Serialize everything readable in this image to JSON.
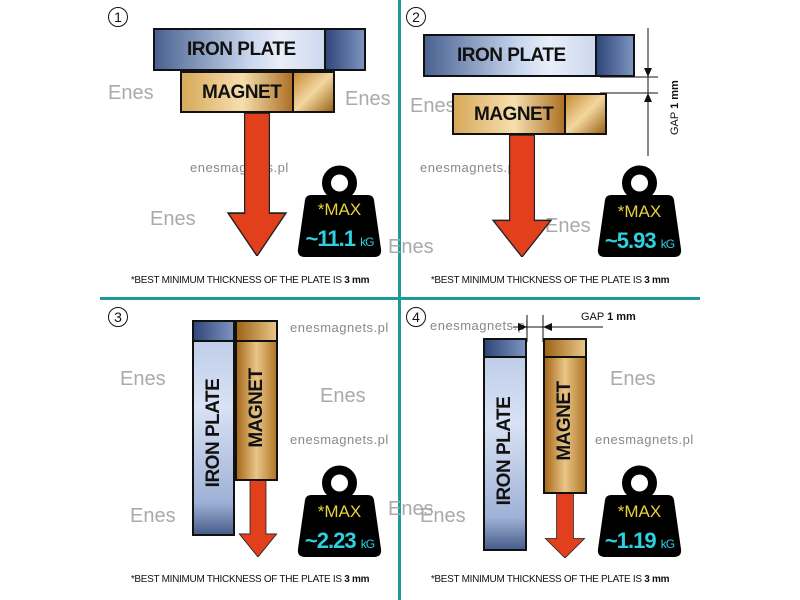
{
  "watermark": "enesmagnets.pl",
  "logo": "Enes",
  "colors": {
    "divider": "#1d9a94",
    "arrow": "#e2401c",
    "max": "#e6d23a",
    "value": "#2ed0e0"
  },
  "panels": [
    {
      "number": "1",
      "iron": "IRON PLATE",
      "magnet": "MAGNET",
      "max": "*MAX",
      "value": "~11.1",
      "unit": "kG",
      "footnote": "*BEST MINIMUM THICKNESS OF THE PLATE IS",
      "thickness": "3 mm"
    },
    {
      "number": "2",
      "iron": "IRON PLATE",
      "magnet": "MAGNET",
      "gap_label": "GAP",
      "gap_value": "1 mm",
      "max": "*MAX",
      "value": "~5.93",
      "unit": "kG",
      "footnote": "*BEST MINIMUM THICKNESS OF THE PLATE IS",
      "thickness": "3 mm"
    },
    {
      "number": "3",
      "iron": "IRON  PLATE",
      "magnet": "MAGNET",
      "max": "*MAX",
      "value": "~2.23",
      "unit": "kG",
      "footnote": "*BEST MINIMUM THICKNESS OF THE PLATE IS",
      "thickness": "3 mm"
    },
    {
      "number": "4",
      "iron": "IRON PLATE",
      "magnet": "MAGNET",
      "gap_label": "GAP",
      "gap_value": "1 mm",
      "max": "*MAX",
      "value": "~1.19",
      "unit": "kG",
      "footnote": "*BEST MINIMUM THICKNESS OF THE PLATE IS",
      "thickness": "3 mm"
    }
  ]
}
